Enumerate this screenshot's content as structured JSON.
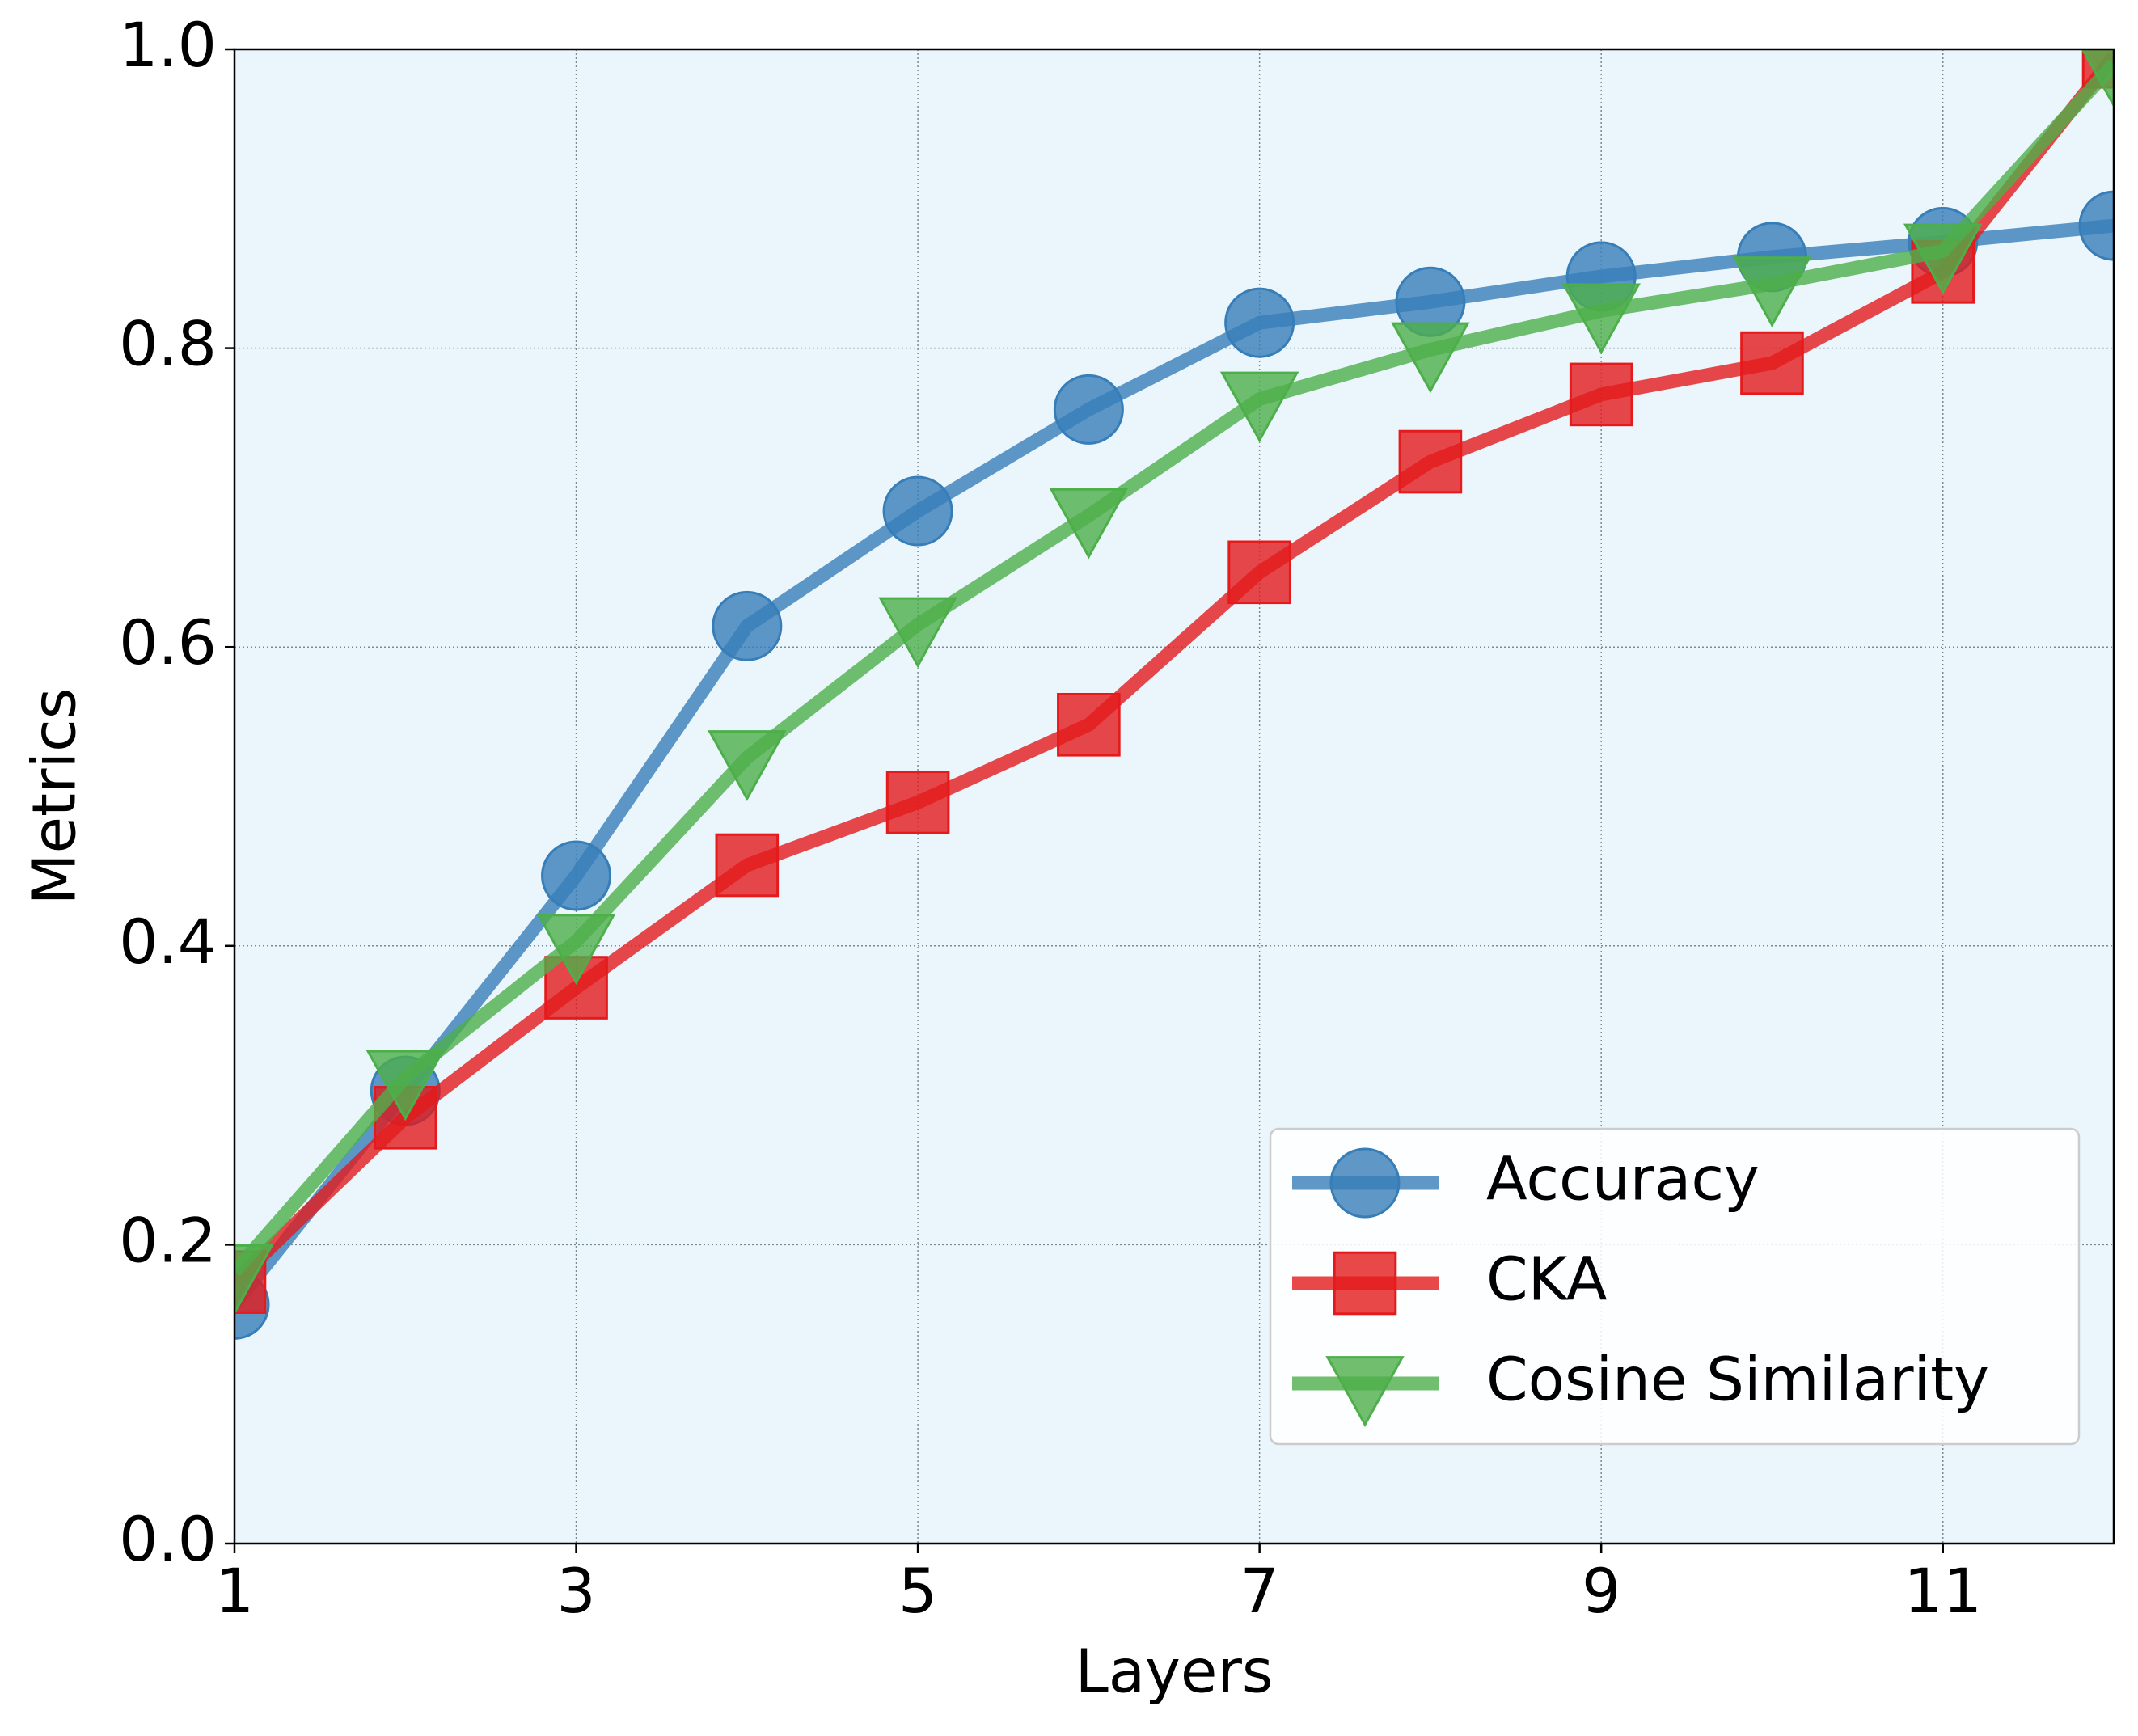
{
  "chart_data": {
    "type": "line",
    "x_label": "Layers",
    "y_label": "Metrics",
    "x": [
      1,
      2,
      3,
      4,
      5,
      6,
      7,
      8,
      9,
      10,
      11,
      12
    ],
    "series": [
      {
        "name": "Accuracy",
        "color": "#377eb8",
        "marker": "circle",
        "values": [
          0.16,
          0.303,
          0.447,
          0.614,
          0.691,
          0.759,
          0.817,
          0.831,
          0.848,
          0.861,
          0.871,
          0.882
        ]
      },
      {
        "name": "CKA",
        "color": "#e41a1c",
        "marker": "square",
        "values": [
          0.175,
          0.285,
          0.372,
          0.454,
          0.496,
          0.548,
          0.65,
          0.724,
          0.769,
          0.79,
          0.851,
          0.995
        ]
      },
      {
        "name": "Cosine Similarity",
        "color": "#4daf4a",
        "marker": "triangle-down",
        "values": [
          0.182,
          0.312,
          0.403,
          0.526,
          0.615,
          0.688,
          0.766,
          0.799,
          0.825,
          0.843,
          0.865,
          0.99
        ]
      }
    ],
    "xlim": [
      1,
      12
    ],
    "xticks": [
      1,
      3,
      5,
      7,
      9,
      11
    ],
    "ylim": [
      0,
      1
    ],
    "yticks": [
      {
        "value": 0,
        "label": "0.0"
      },
      0.2,
      0.4,
      0.6,
      0.8,
      {
        "value": 1,
        "label": "1.0"
      }
    ],
    "grid": true,
    "legend": "lower right"
  }
}
